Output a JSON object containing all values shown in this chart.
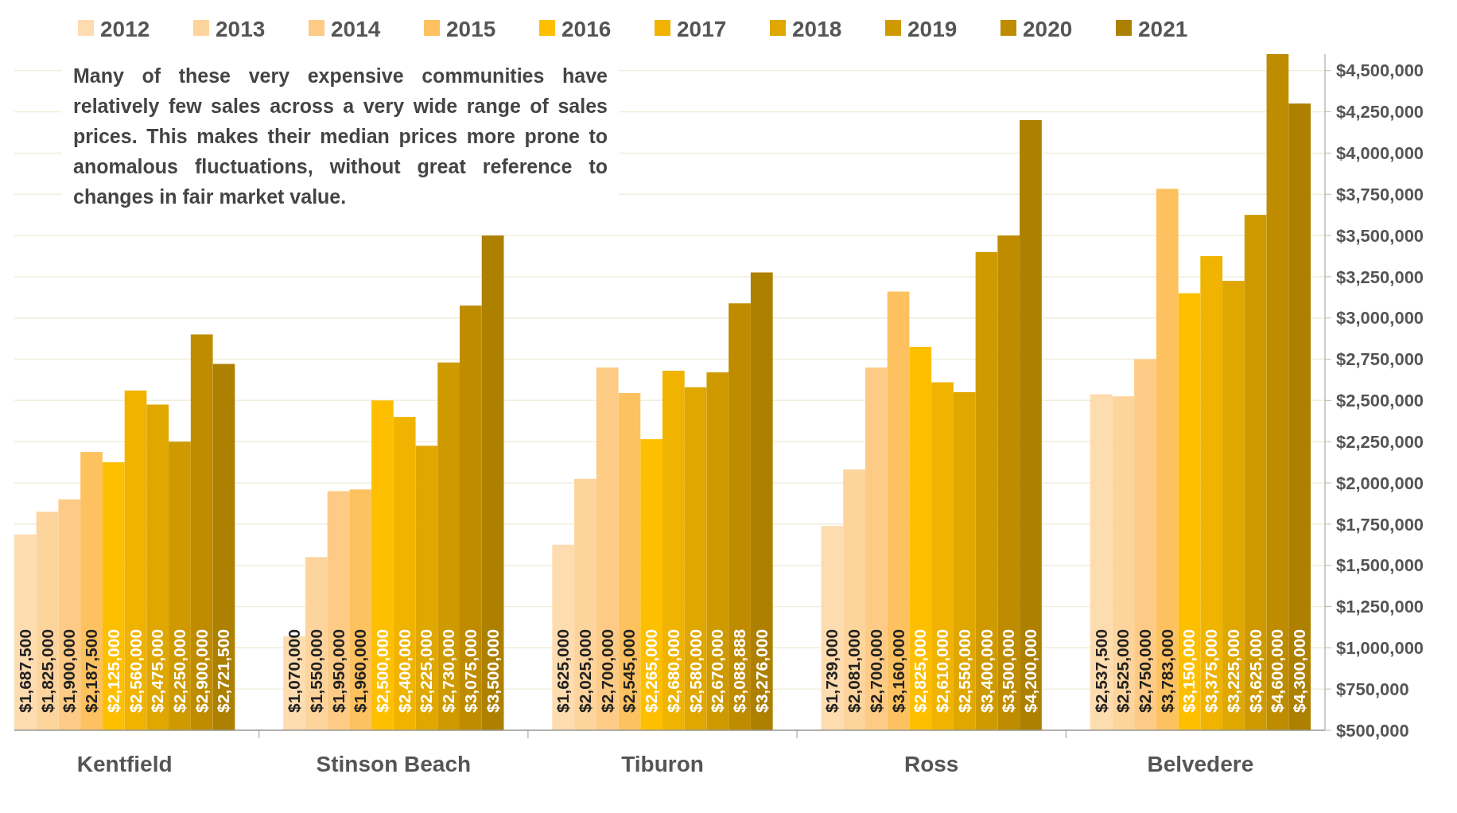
{
  "chart_data": {
    "type": "bar",
    "categories": [
      "Kentfield",
      "Stinson Beach",
      "Tiburon",
      "Ross",
      "Belvedere"
    ],
    "series": [
      {
        "name": "2012",
        "color": "#fddcb0",
        "values": [
          1687500,
          1070000,
          1625000,
          1739000,
          2537500
        ],
        "value_labels": [
          "$1,687,500",
          "$1,070,000",
          "$1,625,000",
          "$1,739,000",
          "$2,537,500"
        ]
      },
      {
        "name": "2013",
        "color": "#fdd49c",
        "values": [
          1825000,
          1550000,
          2025000,
          2081000,
          2525000
        ],
        "value_labels": [
          "$1,825,000",
          "$1,550,000",
          "$2,025,000",
          "$2,081,000",
          "$2,525,000"
        ]
      },
      {
        "name": "2014",
        "color": "#fdcb85",
        "values": [
          1900000,
          1950000,
          2700000,
          2700000,
          2750000
        ],
        "value_labels": [
          "$1,900,000",
          "$1,950,000",
          "$2,700,000",
          "$2,700,000",
          "$2,750,000"
        ]
      },
      {
        "name": "2015",
        "color": "#fdc15f",
        "values": [
          2187500,
          1960000,
          2545000,
          3160000,
          3783000
        ],
        "value_labels": [
          "$2,187,500",
          "$1,960,000",
          "$2,545,000",
          "$3,160,000",
          "$3,783,000"
        ]
      },
      {
        "name": "2016",
        "color": "#fdbf00",
        "values": [
          2125000,
          2500000,
          2265000,
          2825000,
          3150000
        ],
        "value_labels": [
          "$2,125,000",
          "$2,500,000",
          "$2,265,000",
          "$2,825,000",
          "$3,150,000"
        ]
      },
      {
        "name": "2017",
        "color": "#f0b400",
        "values": [
          2560000,
          2400000,
          2680000,
          2610000,
          3375000
        ],
        "value_labels": [
          "$2,560,000",
          "$2,400,000",
          "$2,680,000",
          "$2,610,000",
          "$3,375,000"
        ]
      },
      {
        "name": "2018",
        "color": "#dfa700",
        "values": [
          2475000,
          2225000,
          2580000,
          2550000,
          3225000
        ],
        "value_labels": [
          "$2,475,000",
          "$2,225,000",
          "$2,580,000",
          "$2,550,000",
          "$3,225,000"
        ]
      },
      {
        "name": "2019",
        "color": "#cf9a00",
        "values": [
          2250000,
          2730000,
          2670000,
          3400000,
          3625000
        ],
        "value_labels": [
          "$2,250,000",
          "$2,730,000",
          "$2,670,000",
          "$3,400,000",
          "$3,625,000"
        ]
      },
      {
        "name": "2020",
        "color": "#bf8c00",
        "values": [
          2900000,
          3075000,
          3088888,
          3500000,
          4600000
        ],
        "value_labels": [
          "$2,900,000",
          "$3,075,000",
          "$3,088,888",
          "$3,500,000",
          "$4,600,000"
        ]
      },
      {
        "name": "2021",
        "color": "#ad8000",
        "values": [
          2721500,
          3500000,
          3276000,
          4200000,
          4300000
        ],
        "value_labels": [
          "$2,721,500",
          "$3,500,000",
          "$3,276,000",
          "$4,200,000",
          "$4,300,000"
        ]
      }
    ],
    "ylim": [
      500000,
      4600000
    ],
    "yticks": [
      {
        "value": 500000,
        "label": "$500,000"
      },
      {
        "value": 750000,
        "label": "$750,000"
      },
      {
        "value": 1000000,
        "label": "$1,000,000"
      },
      {
        "value": 1250000,
        "label": "$1,250,000"
      },
      {
        "value": 1500000,
        "label": "$1,500,000"
      },
      {
        "value": 1750000,
        "label": "$1,750,000"
      },
      {
        "value": 2000000,
        "label": "$2,000,000"
      },
      {
        "value": 2250000,
        "label": "$2,250,000"
      },
      {
        "value": 2500000,
        "label": "$2,500,000"
      },
      {
        "value": 2750000,
        "label": "$2,750,000"
      },
      {
        "value": 3000000,
        "label": "$3,000,000"
      },
      {
        "value": 3250000,
        "label": "$3,250,000"
      },
      {
        "value": 3500000,
        "label": "$3,500,000"
      },
      {
        "value": 3750000,
        "label": "$3,750,000"
      },
      {
        "value": 4000000,
        "label": "$4,000,000"
      },
      {
        "value": 4250000,
        "label": "$4,250,000"
      },
      {
        "value": 4500000,
        "label": "$4,500,000"
      }
    ],
    "grid": "y",
    "legend": "top",
    "annotations": [
      "Many of these very expensive communities have relatively few sales across a very wide range of sales prices. This makes their median prices more prone to anomalous fluctuations, without great reference to changes in fair market value."
    ]
  }
}
